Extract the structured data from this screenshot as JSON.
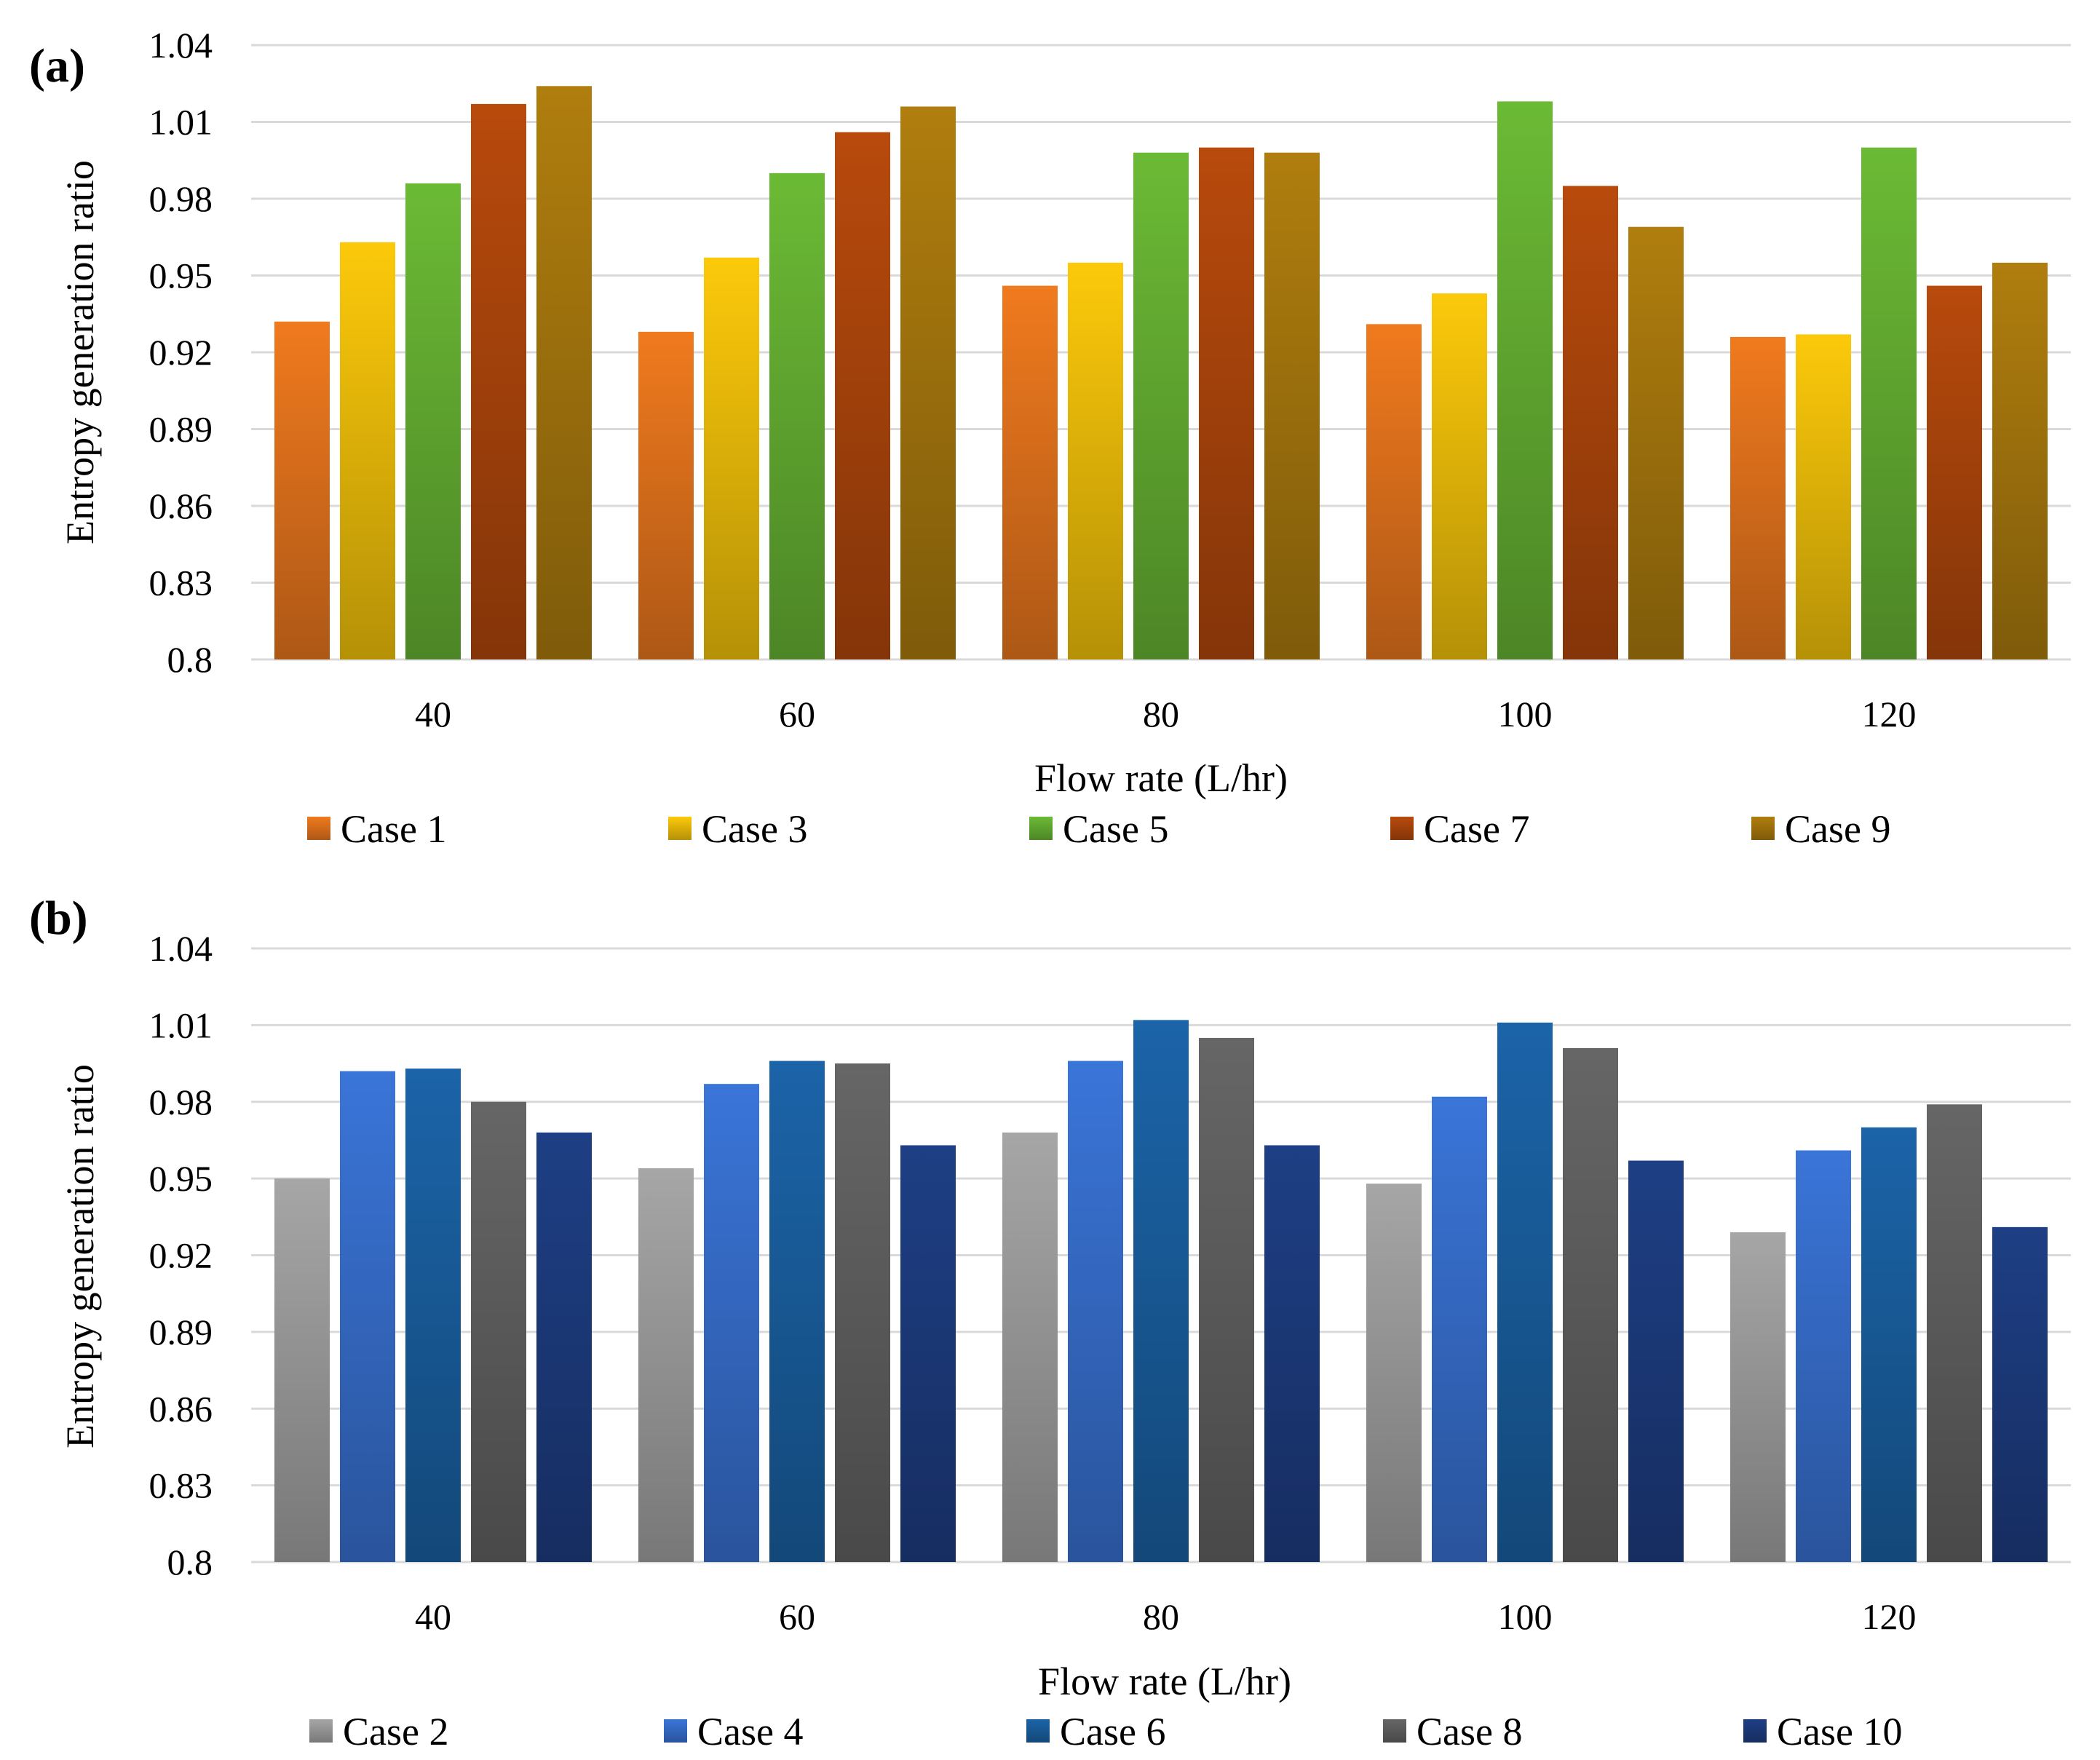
{
  "chart_data": [
    {
      "type": "bar",
      "panel_label": "(a)",
      "title": "",
      "xlabel": "Flow rate (L/hr)",
      "ylabel": "Entropy generation ratio",
      "ylim": [
        0.8,
        1.04
      ],
      "yticks": [
        "0.8",
        "0.83",
        "0.86",
        "0.89",
        "0.92",
        "0.95",
        "0.98",
        "1.01",
        "1.04"
      ],
      "grid": true,
      "legend_position": "bottom",
      "categories": [
        "40",
        "60",
        "80",
        "100",
        "120"
      ],
      "series": [
        {
          "name": "Case 1",
          "color": "#f07a1e",
          "values": [
            0.932,
            0.928,
            0.946,
            0.931,
            0.926
          ]
        },
        {
          "name": "Case 3",
          "color": "#fcc90a",
          "values": [
            0.963,
            0.957,
            0.955,
            0.943,
            0.927
          ]
        },
        {
          "name": "Case 5",
          "color": "#6bba35",
          "values": [
            0.986,
            0.99,
            0.998,
            1.018,
            1.0
          ]
        },
        {
          "name": "Case 7",
          "color": "#b84a0c",
          "values": [
            1.017,
            1.006,
            1.0,
            0.985,
            0.946
          ]
        },
        {
          "name": "Case 9",
          "color": "#b07e0e",
          "values": [
            1.024,
            1.016,
            0.998,
            0.969,
            0.955
          ]
        }
      ]
    },
    {
      "type": "bar",
      "panel_label": "(b)",
      "title": "",
      "xlabel": "Flow rate (L/hr)",
      "ylabel": "Entropy generation ratio",
      "ylim": [
        0.8,
        1.04
      ],
      "yticks": [
        "0.8",
        "0.83",
        "0.86",
        "0.89",
        "0.92",
        "0.95",
        "0.98",
        "1.01",
        "1.04"
      ],
      "grid": true,
      "legend_position": "bottom",
      "categories": [
        "40",
        "60",
        "80",
        "100",
        "120"
      ],
      "series": [
        {
          "name": "Case 2",
          "color": "#a6a6a6",
          "values": [
            0.95,
            0.954,
            0.968,
            0.948,
            0.929
          ]
        },
        {
          "name": "Case 4",
          "color": "#3a75d8",
          "values": [
            0.992,
            0.987,
            0.996,
            0.982,
            0.961
          ]
        },
        {
          "name": "Case 6",
          "color": "#1b64a8",
          "values": [
            0.993,
            0.996,
            1.012,
            1.011,
            0.97
          ]
        },
        {
          "name": "Case 8",
          "color": "#666666",
          "values": [
            0.98,
            0.995,
            1.005,
            1.001,
            0.979
          ]
        },
        {
          "name": "Case 10",
          "color": "#1e3f85",
          "values": [
            0.968,
            0.963,
            0.963,
            0.957,
            0.931
          ]
        }
      ]
    }
  ]
}
